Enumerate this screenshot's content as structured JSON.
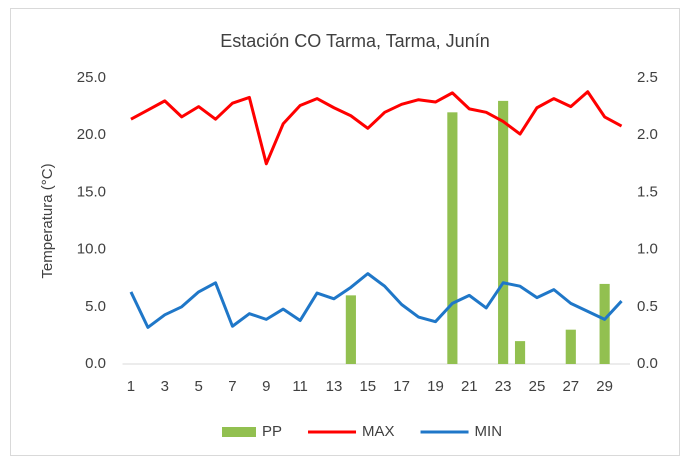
{
  "chart_data": {
    "type": "bar-line",
    "title": "Estación CO Tarma, Tarma, Junín",
    "ylabel": "Temperatura (°C)",
    "categories": [
      1,
      null,
      3,
      null,
      5,
      null,
      7,
      null,
      9,
      null,
      11,
      null,
      13,
      null,
      15,
      null,
      17,
      null,
      19,
      null,
      21,
      null,
      23,
      null,
      25,
      null,
      27,
      null,
      29,
      null
    ],
    "series": [
      {
        "name": "PP",
        "type": "bar",
        "axis": "y2",
        "color": "#92c050",
        "values": [
          0,
          0,
          0,
          0,
          0,
          0,
          0,
          0,
          0,
          0,
          0,
          0,
          0,
          0.6,
          0,
          0,
          0,
          0,
          0,
          2.2,
          0,
          0,
          2.3,
          0.2,
          0,
          0,
          0.3,
          0,
          0.7,
          0
        ]
      },
      {
        "name": "MAX",
        "type": "line",
        "color": "#ff0000",
        "values": [
          21.4,
          22.2,
          23.0,
          21.6,
          22.5,
          21.4,
          22.8,
          23.3,
          17.5,
          21.0,
          22.6,
          23.2,
          22.4,
          21.7,
          20.6,
          22.0,
          22.7,
          23.1,
          22.9,
          23.7,
          22.3,
          22.0,
          21.2,
          20.1,
          22.4,
          23.2,
          22.5,
          23.8,
          21.6,
          20.8
        ]
      },
      {
        "name": "MIN",
        "type": "line",
        "color": "#1f77c8",
        "values": [
          6.3,
          3.2,
          4.3,
          5.0,
          6.3,
          7.1,
          3.3,
          4.4,
          3.9,
          4.8,
          3.8,
          6.2,
          5.7,
          6.7,
          7.9,
          6.8,
          5.2,
          4.1,
          3.7,
          5.3,
          6.0,
          4.9,
          7.1,
          6.8,
          5.8,
          6.5,
          5.3,
          4.6,
          3.9,
          5.5
        ]
      }
    ],
    "ylim": [
      0,
      25
    ],
    "yticks": [
      {
        "value": 0,
        "label": "0.0"
      },
      {
        "value": 5,
        "label": "5.0"
      },
      {
        "value": 10,
        "label": "10.0"
      },
      {
        "value": 15,
        "label": "15.0"
      },
      {
        "value": 20,
        "label": "20.0"
      },
      {
        "value": 25,
        "label": "25.0"
      }
    ],
    "y2lim": [
      0,
      2.5
    ],
    "y2ticks": [
      {
        "value": 0,
        "label": "0.0"
      },
      0.5,
      {
        "value": 1,
        "label": "1.0"
      },
      1.5,
      {
        "value": 2,
        "label": "2.0"
      },
      2.5
    ],
    "grid": false,
    "legend": "bottom"
  }
}
